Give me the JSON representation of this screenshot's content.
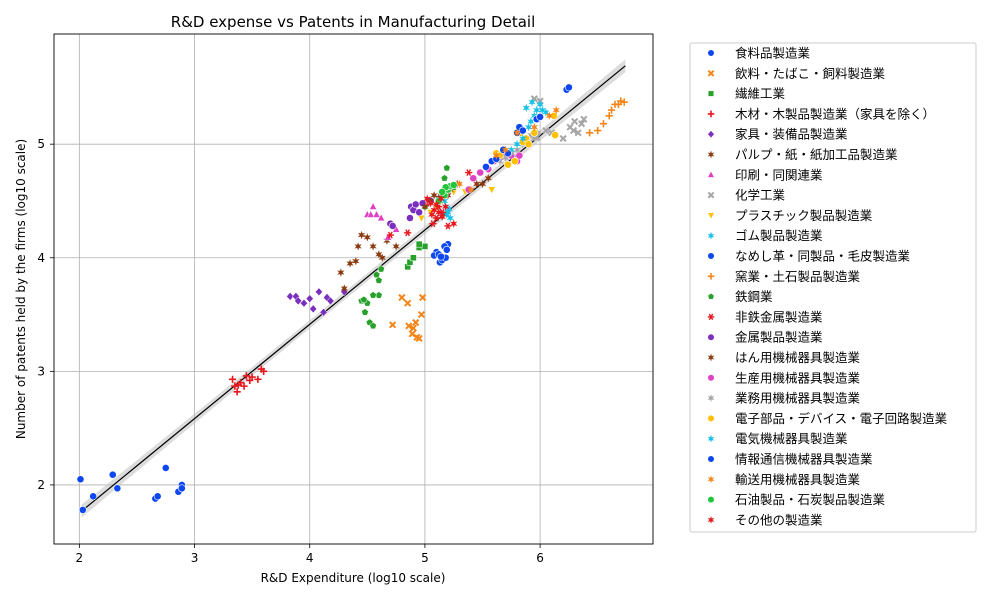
{
  "chart_data": {
    "type": "scatter",
    "title": "R&D expense vs Patents in Manufacturing Detail",
    "xlabel": "R&D Expenditure (log10 scale)",
    "ylabel": "Number of patents held by the firms (log10 scale)",
    "xlim": [
      1.78,
      6.98
    ],
    "ylim": [
      1.48,
      5.97
    ],
    "x_ticks": [
      "2",
      "3",
      "4",
      "5",
      "6"
    ],
    "x_tick_values": [
      2,
      3,
      4,
      5,
      6
    ],
    "y_ticks": [
      "2",
      "3",
      "4",
      "5"
    ],
    "y_tick_values": [
      2,
      3,
      4,
      5
    ],
    "grid": true,
    "legend_position": "outside-right",
    "regression_line": {
      "x0": 2.02,
      "y0": 1.77,
      "x1": 6.74,
      "y1": 5.69,
      "color": "#000000",
      "band_color": "#bfbfbf"
    },
    "series": [
      {
        "name": "食料品製造業",
        "color": "#0d47f0",
        "marker": "circle",
        "points": [
          [
            5.1,
            4.05
          ],
          [
            5.13,
            3.96
          ],
          [
            5.15,
            3.98
          ],
          [
            5.18,
            4.0
          ],
          [
            5.2,
            4.12
          ],
          [
            5.08,
            4.02
          ],
          [
            5.17,
            4.1
          ],
          [
            5.12,
            4.03
          ],
          [
            5.19,
            4.07
          ],
          [
            5.14,
            4.01
          ]
        ]
      },
      {
        "name": "飲料・たばこ・飼料製造業",
        "color": "#f58518",
        "marker": "x",
        "points": [
          [
            4.72,
            3.41
          ],
          [
            4.8,
            3.65
          ],
          [
            4.85,
            3.6
          ],
          [
            4.86,
            3.4
          ],
          [
            4.9,
            3.38
          ],
          [
            4.92,
            3.43
          ],
          [
            4.95,
            3.29
          ],
          [
            4.97,
            3.5
          ],
          [
            4.98,
            3.65
          ],
          [
            4.89,
            3.33
          ],
          [
            4.93,
            3.3
          ]
        ]
      },
      {
        "name": "繊維工業",
        "color": "#27a12b",
        "marker": "square",
        "points": [
          [
            4.85,
            3.92
          ],
          [
            4.87,
            3.96
          ],
          [
            4.9,
            4.0
          ],
          [
            4.95,
            4.09
          ],
          [
            5.0,
            4.1
          ],
          [
            4.95,
            4.12
          ]
        ]
      },
      {
        "name": "木材・木製品製造業（家具を除く）",
        "color": "#e8161d",
        "marker": "plus",
        "points": [
          [
            3.33,
            2.93
          ],
          [
            3.35,
            2.87
          ],
          [
            3.37,
            2.82
          ],
          [
            3.4,
            2.9
          ],
          [
            3.43,
            2.87
          ],
          [
            3.45,
            2.96
          ],
          [
            3.48,
            2.92
          ],
          [
            3.5,
            2.95
          ],
          [
            3.55,
            2.93
          ],
          [
            3.58,
            3.02
          ],
          [
            3.6,
            3.0
          ],
          [
            3.38,
            2.88
          ]
        ]
      },
      {
        "name": "家具・装備品製造業",
        "color": "#7b2fbe",
        "marker": "diamond",
        "points": [
          [
            3.83,
            3.66
          ],
          [
            3.88,
            3.66
          ],
          [
            3.9,
            3.62
          ],
          [
            3.95,
            3.6
          ],
          [
            4.0,
            3.64
          ],
          [
            4.03,
            3.55
          ],
          [
            4.08,
            3.7
          ],
          [
            4.12,
            3.52
          ],
          [
            4.15,
            3.65
          ],
          [
            4.18,
            3.62
          ],
          [
            4.3,
            3.7
          ]
        ]
      },
      {
        "name": "パルプ・紙・紙加工品製造業",
        "color": "#8b3a0f",
        "marker": "star",
        "points": [
          [
            4.27,
            3.87
          ],
          [
            4.35,
            3.95
          ],
          [
            4.4,
            3.97
          ],
          [
            4.42,
            4.1
          ],
          [
            4.45,
            4.2
          ],
          [
            4.5,
            4.18
          ],
          [
            4.6,
            4.03
          ],
          [
            4.63,
            4.0
          ],
          [
            4.67,
            4.15
          ],
          [
            4.75,
            4.1
          ],
          [
            5.2,
            4.55
          ],
          [
            5.45,
            4.65
          ],
          [
            4.3,
            3.73
          ],
          [
            4.55,
            4.1
          ]
        ]
      },
      {
        "name": "印刷・同関連業",
        "color": "#e040c4",
        "marker": "triangle-up",
        "points": [
          [
            4.5,
            4.38
          ],
          [
            4.53,
            4.38
          ],
          [
            4.55,
            4.45
          ],
          [
            4.58,
            4.38
          ],
          [
            4.62,
            4.35
          ],
          [
            4.68,
            4.18
          ],
          [
            4.75,
            4.25
          ]
        ]
      },
      {
        "name": "化学工業",
        "color": "#a6a6a6",
        "marker": "x",
        "points": [
          [
            5.95,
            5.4
          ],
          [
            6.0,
            5.38
          ],
          [
            6.05,
            5.12
          ],
          [
            6.1,
            5.1
          ],
          [
            6.2,
            5.05
          ],
          [
            6.26,
            5.15
          ],
          [
            6.3,
            5.2
          ],
          [
            6.33,
            5.1
          ],
          [
            6.36,
            5.18
          ],
          [
            6.38,
            5.22
          ],
          [
            6.29,
            5.12
          ],
          [
            5.97,
            5.06
          ]
        ]
      },
      {
        "name": "プラスチック製品製造業",
        "color": "#ffc000",
        "marker": "triangle-down",
        "points": [
          [
            4.97,
            4.35
          ],
          [
            5.05,
            4.4
          ],
          [
            5.1,
            4.45
          ],
          [
            5.15,
            4.5
          ],
          [
            5.25,
            4.58
          ],
          [
            5.35,
            4.58
          ],
          [
            5.58,
            4.6
          ]
        ]
      },
      {
        "name": "ゴム製品製造業",
        "color": "#17c1e8",
        "marker": "star",
        "points": [
          [
            5.15,
            4.55
          ],
          [
            5.17,
            4.5
          ],
          [
            5.18,
            4.45
          ],
          [
            5.2,
            4.4
          ],
          [
            5.22,
            4.35
          ],
          [
            5.12,
            4.52
          ],
          [
            5.19,
            4.38
          ],
          [
            5.21,
            4.43
          ]
        ]
      },
      {
        "name": "なめし革・同製品・毛皮製造業",
        "color": "#0d47f0",
        "marker": "circle",
        "points": [
          [
            2.01,
            2.05
          ],
          [
            2.03,
            1.78
          ],
          [
            2.12,
            1.9
          ],
          [
            2.29,
            2.09
          ],
          [
            2.33,
            1.97
          ],
          [
            2.66,
            1.88
          ],
          [
            2.68,
            1.9
          ],
          [
            2.75,
            2.15
          ],
          [
            2.86,
            1.94
          ],
          [
            2.89,
            2.0
          ],
          [
            2.89,
            1.97
          ]
        ]
      },
      {
        "name": "窯業・土石製品製造業",
        "color": "#f58518",
        "marker": "plus",
        "points": [
          [
            6.5,
            5.12
          ],
          [
            6.55,
            5.18
          ],
          [
            6.6,
            5.25
          ],
          [
            6.62,
            5.3
          ],
          [
            6.65,
            5.35
          ],
          [
            6.7,
            5.38
          ],
          [
            6.73,
            5.37
          ],
          [
            6.68,
            5.35
          ],
          [
            6.43,
            5.1
          ]
        ]
      },
      {
        "name": "鉄鋼業",
        "color": "#27a12b",
        "marker": "pentagon",
        "points": [
          [
            4.45,
            3.62
          ],
          [
            4.48,
            3.52
          ],
          [
            4.5,
            3.6
          ],
          [
            4.52,
            3.43
          ],
          [
            4.55,
            3.4
          ],
          [
            4.58,
            3.85
          ],
          [
            4.6,
            3.8
          ],
          [
            4.62,
            3.9
          ],
          [
            4.6,
            3.67
          ],
          [
            4.55,
            3.67
          ],
          [
            5.0,
            4.45
          ],
          [
            5.17,
            4.7
          ],
          [
            5.19,
            4.79
          ],
          [
            5.2,
            4.6
          ],
          [
            5.25,
            4.62
          ],
          [
            4.47,
            3.63
          ]
        ]
      },
      {
        "name": "非鉄金属製造業",
        "color": "#e8161d",
        "marker": "asterisk",
        "points": [
          [
            4.7,
            4.2
          ],
          [
            4.85,
            4.22
          ],
          [
            5.02,
            4.48
          ],
          [
            5.05,
            4.5
          ],
          [
            5.1,
            4.35
          ],
          [
            5.12,
            4.45
          ],
          [
            5.15,
            4.4
          ],
          [
            5.2,
            4.28
          ],
          [
            5.38,
            4.75
          ],
          [
            5.07,
            4.3
          ]
        ]
      },
      {
        "name": "金属製品製造業",
        "color": "#7b2fbe",
        "marker": "circle",
        "points": [
          [
            4.7,
            4.3
          ],
          [
            4.72,
            4.28
          ],
          [
            4.87,
            4.35
          ],
          [
            4.88,
            4.45
          ],
          [
            4.9,
            4.42
          ],
          [
            4.92,
            4.47
          ],
          [
            4.95,
            4.4
          ],
          [
            4.98,
            4.48
          ],
          [
            5.05,
            4.5
          ]
        ]
      },
      {
        "name": "はん用機械器具製造業",
        "color": "#8b3a0f",
        "marker": "star",
        "points": [
          [
            5.0,
            4.45
          ],
          [
            5.05,
            4.5
          ],
          [
            5.08,
            4.55
          ],
          [
            5.12,
            4.53
          ],
          [
            5.15,
            4.58
          ],
          [
            5.22,
            4.6
          ],
          [
            5.28,
            4.65
          ],
          [
            5.5,
            4.65
          ],
          [
            5.55,
            4.7
          ]
        ]
      },
      {
        "name": "生産用機械器具製造業",
        "color": "#e040c4",
        "marker": "circle",
        "points": [
          [
            5.38,
            4.6
          ],
          [
            5.42,
            4.7
          ],
          [
            5.48,
            4.75
          ],
          [
            5.55,
            4.78
          ],
          [
            5.6,
            4.85
          ],
          [
            5.65,
            4.88
          ],
          [
            5.7,
            4.92
          ],
          [
            5.75,
            4.9
          ],
          [
            5.8,
            4.85
          ],
          [
            5.82,
            4.9
          ]
        ]
      },
      {
        "name": "業務用機械器具製造業",
        "color": "#a6a6a6",
        "marker": "star",
        "points": [
          [
            5.65,
            4.85
          ],
          [
            5.7,
            4.88
          ],
          [
            5.75,
            4.92
          ],
          [
            5.8,
            4.95
          ],
          [
            5.85,
            5.0
          ],
          [
            5.9,
            5.02
          ],
          [
            5.92,
            5.08
          ],
          [
            5.95,
            5.05
          ],
          [
            5.98,
            5.1
          ]
        ]
      },
      {
        "name": "電子部品・デバイス・電子回路製造業",
        "color": "#ffc000",
        "marker": "circle",
        "points": [
          [
            5.62,
            4.92
          ],
          [
            5.65,
            4.9
          ],
          [
            5.72,
            4.82
          ],
          [
            5.78,
            4.85
          ],
          [
            5.85,
            5.02
          ],
          [
            5.88,
            5.05
          ],
          [
            5.9,
            5.0
          ],
          [
            5.95,
            5.1
          ],
          [
            6.12,
            5.25
          ],
          [
            6.13,
            5.08
          ],
          [
            5.83,
            5.1
          ]
        ]
      },
      {
        "name": "電気機械器具製造業",
        "color": "#17c1e8",
        "marker": "star",
        "points": [
          [
            5.75,
            4.95
          ],
          [
            5.8,
            5.0
          ],
          [
            5.85,
            5.05
          ],
          [
            5.9,
            5.15
          ],
          [
            5.92,
            5.2
          ],
          [
            5.95,
            5.25
          ],
          [
            5.97,
            5.3
          ],
          [
            6.0,
            5.35
          ],
          [
            6.05,
            5.28
          ],
          [
            5.88,
            5.32
          ],
          [
            5.93,
            5.37
          ],
          [
            6.02,
            5.3
          ]
        ]
      },
      {
        "name": "情報通信機械器具製造業",
        "color": "#0d47f0",
        "marker": "circle",
        "points": [
          [
            5.53,
            4.8
          ],
          [
            5.58,
            4.85
          ],
          [
            5.62,
            4.87
          ],
          [
            5.68,
            4.95
          ],
          [
            5.72,
            4.92
          ],
          [
            5.8,
            5.1
          ],
          [
            5.82,
            5.15
          ],
          [
            5.85,
            5.12
          ],
          [
            5.97,
            5.22
          ],
          [
            6.0,
            5.24
          ],
          [
            6.23,
            5.48
          ],
          [
            6.25,
            5.5
          ]
        ]
      },
      {
        "name": "輸送用機械器具製造業",
        "color": "#f58518",
        "marker": "star",
        "points": [
          [
            5.3,
            4.65
          ],
          [
            5.4,
            4.6
          ],
          [
            5.62,
            4.9
          ],
          [
            5.7,
            4.95
          ],
          [
            5.8,
            5.1
          ],
          [
            5.95,
            5.15
          ],
          [
            6.08,
            5.25
          ],
          [
            6.14,
            5.3
          ]
        ]
      },
      {
        "name": "石油製品・石炭製品製造業",
        "color": "#22c53a",
        "marker": "circle",
        "points": [
          [
            5.12,
            4.5
          ],
          [
            5.17,
            4.55
          ],
          [
            5.2,
            4.6
          ],
          [
            5.22,
            4.63
          ],
          [
            5.25,
            4.64
          ],
          [
            5.18,
            4.62
          ],
          [
            5.15,
            4.58
          ]
        ]
      },
      {
        "name": "その他の製造業",
        "color": "#e8161d",
        "marker": "star",
        "points": [
          [
            5.02,
            4.52
          ],
          [
            5.05,
            4.48
          ],
          [
            5.08,
            4.42
          ],
          [
            5.12,
            4.4
          ],
          [
            5.15,
            4.36
          ],
          [
            5.18,
            4.45
          ],
          [
            5.1,
            4.47
          ],
          [
            5.25,
            4.3
          ],
          [
            5.06,
            4.38
          ],
          [
            5.14,
            4.52
          ]
        ]
      }
    ]
  }
}
